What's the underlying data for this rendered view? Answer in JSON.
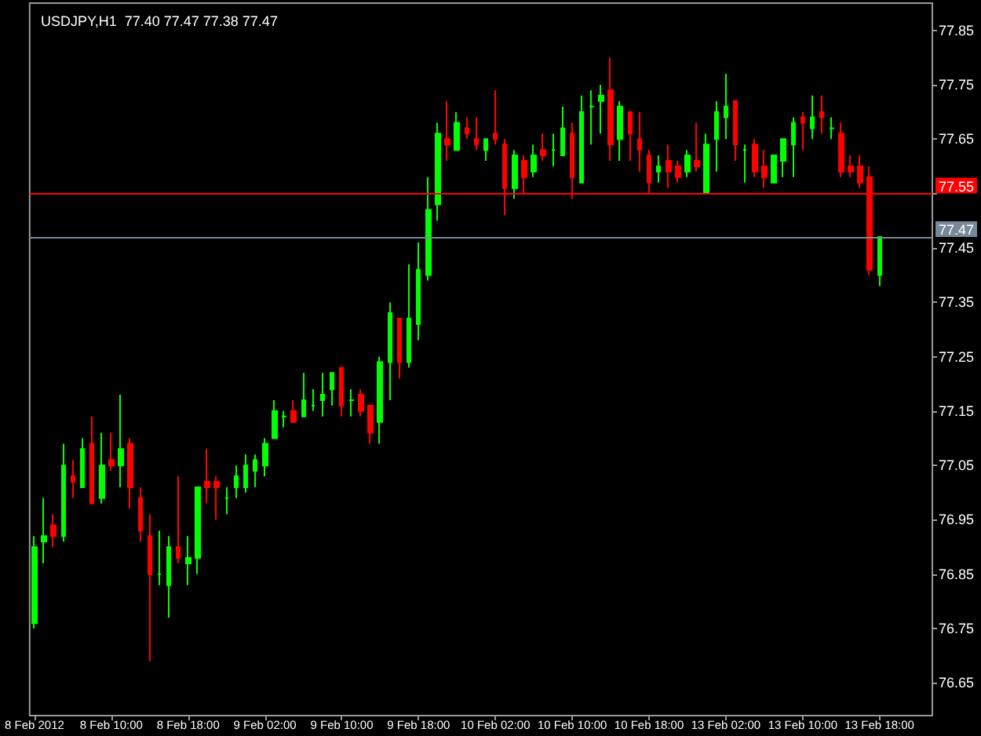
{
  "chart_data": {
    "type": "candlestick",
    "title": "USDJPY,H1  77.40 77.47 77.38 77.47",
    "categories": [
      "8 Feb 2012",
      null,
      null,
      null,
      null,
      null,
      null,
      null,
      "8 Feb 10:00",
      null,
      null,
      null,
      null,
      null,
      null,
      null,
      "8 Feb 18:00",
      null,
      null,
      null,
      null,
      null,
      null,
      null,
      "9 Feb 02:00",
      null,
      null,
      null,
      null,
      null,
      null,
      null,
      "9 Feb 10:00",
      null,
      null,
      null,
      null,
      null,
      null,
      null,
      "9 Feb 18:00",
      null,
      null,
      null,
      null,
      null,
      null,
      null,
      "10 Feb 02:00",
      null,
      null,
      null,
      null,
      null,
      null,
      null,
      "10 Feb 10:00",
      null,
      null,
      null,
      null,
      null,
      null,
      null,
      "10 Feb 18:00",
      null,
      null,
      null,
      null,
      null,
      null,
      null,
      "13 Feb 02:00",
      null,
      null,
      null,
      null,
      null,
      null,
      null,
      "13 Feb 10:00",
      null,
      null,
      null,
      null,
      null,
      null,
      null,
      "13 Feb 18:00"
    ],
    "ohlc": [
      [
        76.76,
        76.92,
        76.75,
        76.9
      ],
      [
        76.91,
        76.99,
        76.87,
        76.92
      ],
      [
        76.94,
        76.96,
        76.9,
        76.92
      ],
      [
        76.92,
        77.09,
        76.91,
        77.05
      ],
      [
        77.03,
        77.06,
        76.99,
        77.02
      ],
      [
        77.01,
        77.1,
        77.01,
        77.08
      ],
      [
        77.09,
        77.14,
        76.98,
        76.98
      ],
      [
        76.99,
        77.11,
        76.98,
        77.05
      ],
      [
        77.06,
        77.11,
        77.04,
        77.05
      ],
      [
        77.05,
        77.18,
        77.01,
        77.08
      ],
      [
        77.09,
        77.1,
        76.97,
        77.01
      ],
      [
        76.99,
        77.01,
        76.91,
        76.93
      ],
      [
        76.92,
        76.96,
        76.69,
        76.85
      ],
      [
        76.85,
        76.93,
        76.83,
        76.85
      ],
      [
        76.83,
        76.92,
        76.77,
        76.9
      ],
      [
        76.9,
        77.03,
        76.87,
        76.88
      ],
      [
        76.87,
        76.92,
        76.83,
        76.88
      ],
      [
        76.88,
        77.01,
        76.85,
        77.01
      ],
      [
        77.02,
        77.08,
        76.98,
        77.01
      ],
      [
        77.02,
        77.03,
        76.95,
        77.01
      ],
      [
        76.99,
        77.01,
        76.96,
        76.99
      ],
      [
        77.01,
        77.05,
        76.99,
        77.03
      ],
      [
        77.01,
        77.07,
        77.0,
        77.05
      ],
      [
        77.04,
        77.07,
        77.01,
        77.06
      ],
      [
        77.05,
        77.1,
        77.03,
        77.09
      ],
      [
        77.1,
        77.17,
        77.1,
        77.15
      ],
      [
        77.14,
        77.15,
        77.12,
        77.14
      ],
      [
        77.15,
        77.17,
        77.13,
        77.13
      ],
      [
        77.14,
        77.22,
        77.14,
        77.17
      ],
      [
        77.16,
        77.19,
        77.15,
        77.16
      ],
      [
        77.17,
        77.22,
        77.14,
        77.18
      ],
      [
        77.19,
        77.22,
        77.16,
        77.22
      ],
      [
        77.23,
        77.23,
        77.14,
        77.16
      ],
      [
        77.17,
        77.19,
        77.14,
        77.17
      ],
      [
        77.18,
        77.19,
        77.14,
        77.15
      ],
      [
        77.16,
        77.16,
        77.09,
        77.11
      ],
      [
        77.13,
        77.25,
        77.09,
        77.24
      ],
      [
        77.24,
        77.35,
        77.17,
        77.33
      ],
      [
        77.32,
        77.32,
        77.21,
        77.24
      ],
      [
        77.24,
        77.42,
        77.23,
        77.32
      ],
      [
        77.31,
        77.46,
        77.28,
        77.41
      ],
      [
        77.4,
        77.58,
        77.39,
        77.52
      ],
      [
        77.53,
        77.68,
        77.5,
        77.66
      ],
      [
        77.65,
        77.72,
        77.61,
        77.64
      ],
      [
        77.63,
        77.7,
        77.63,
        77.68
      ],
      [
        77.67,
        77.69,
        77.65,
        77.66
      ],
      [
        77.65,
        77.69,
        77.63,
        77.64
      ],
      [
        77.63,
        77.65,
        77.61,
        77.65
      ],
      [
        77.66,
        77.74,
        77.64,
        77.65
      ],
      [
        77.64,
        77.65,
        77.51,
        77.56
      ],
      [
        77.56,
        77.63,
        77.54,
        77.62
      ],
      [
        77.61,
        77.62,
        77.55,
        77.58
      ],
      [
        77.59,
        77.64,
        77.58,
        77.62
      ],
      [
        77.63,
        77.66,
        77.61,
        77.62
      ],
      [
        77.63,
        77.66,
        77.6,
        77.63
      ],
      [
        77.62,
        77.71,
        77.62,
        77.67
      ],
      [
        77.66,
        77.68,
        77.54,
        77.58
      ],
      [
        77.57,
        77.73,
        77.57,
        77.7
      ],
      [
        77.71,
        77.74,
        77.64,
        77.71
      ],
      [
        77.72,
        77.75,
        77.66,
        77.73
      ],
      [
        77.74,
        77.8,
        77.61,
        77.64
      ],
      [
        77.65,
        77.72,
        77.61,
        77.71
      ],
      [
        77.7,
        77.7,
        77.61,
        77.66
      ],
      [
        77.65,
        77.7,
        77.59,
        77.63
      ],
      [
        77.62,
        77.63,
        77.55,
        77.57
      ],
      [
        77.59,
        77.62,
        77.57,
        77.6
      ],
      [
        77.61,
        77.64,
        77.56,
        77.59
      ],
      [
        77.6,
        77.61,
        77.57,
        77.58
      ],
      [
        77.59,
        77.63,
        77.58,
        77.62
      ],
      [
        77.61,
        77.68,
        77.59,
        77.6
      ],
      [
        77.55,
        77.66,
        77.55,
        77.64
      ],
      [
        77.65,
        77.72,
        77.59,
        77.7
      ],
      [
        77.69,
        77.77,
        77.65,
        77.71
      ],
      [
        77.72,
        77.72,
        77.61,
        77.64
      ],
      [
        77.63,
        77.64,
        77.57,
        77.63
      ],
      [
        77.64,
        77.65,
        77.58,
        77.59
      ],
      [
        77.6,
        77.63,
        77.56,
        77.58
      ],
      [
        77.57,
        77.62,
        77.57,
        77.62
      ],
      [
        77.61,
        77.65,
        77.58,
        77.65
      ],
      [
        77.64,
        77.69,
        77.58,
        77.68
      ],
      [
        77.69,
        77.7,
        77.63,
        77.68
      ],
      [
        77.67,
        77.73,
        77.65,
        77.69
      ],
      [
        77.7,
        77.73,
        77.66,
        77.69
      ],
      [
        77.67,
        77.69,
        77.65,
        77.67
      ],
      [
        77.66,
        77.68,
        77.58,
        77.59
      ],
      [
        77.6,
        77.62,
        77.58,
        77.59
      ],
      [
        77.6,
        77.62,
        77.56,
        77.57
      ],
      [
        77.58,
        77.6,
        77.4,
        77.41
      ],
      [
        77.4,
        77.47,
        77.38,
        77.47
      ]
    ],
    "colors": [
      "#00ff00",
      "#00ff00",
      "#ff0000",
      "#00ff00",
      "#ff0000",
      "#00ff00",
      "#ff0000",
      "#00ff00",
      "#ff0000",
      "#00ff00",
      "#ff0000",
      "#ff0000",
      "#ff0000",
      "#00ff00",
      "#00ff00",
      "#ff0000",
      "#00ff00",
      "#00ff00",
      "#ff0000",
      "#ff0000",
      "#00ff00",
      "#00ff00",
      "#00ff00",
      "#00ff00",
      "#00ff00",
      "#00ff00",
      "#00ff00",
      "#ff0000",
      "#00ff00",
      "#00ff00",
      "#00ff00",
      "#00ff00",
      "#ff0000",
      "#00ff00",
      "#ff0000",
      "#ff0000",
      "#00ff00",
      "#00ff00",
      "#ff0000",
      "#00ff00",
      "#00ff00",
      "#00ff00",
      "#00ff00",
      "#ff0000",
      "#00ff00",
      "#ff0000",
      "#ff0000",
      "#00ff00",
      "#ff0000",
      "#ff0000",
      "#00ff00",
      "#ff0000",
      "#00ff00",
      "#ff0000",
      "#00ff00",
      "#00ff00",
      "#ff0000",
      "#00ff00",
      "#00ff00",
      "#00ff00",
      "#ff0000",
      "#00ff00",
      "#ff0000",
      "#ff0000",
      "#ff0000",
      "#00ff00",
      "#ff0000",
      "#ff0000",
      "#00ff00",
      "#ff0000",
      "#00ff00",
      "#00ff00",
      "#00ff00",
      "#ff0000",
      "#00ff00",
      "#ff0000",
      "#ff0000",
      "#00ff00",
      "#00ff00",
      "#00ff00",
      "#ff0000",
      "#00ff00",
      "#ff0000",
      "#00ff00",
      "#ff0000",
      "#ff0000",
      "#ff0000",
      "#ff0000",
      "#00ff00"
    ],
    "ylim": [
      76.59,
      77.9
    ],
    "yticks": [
      76.65,
      76.75,
      76.85,
      76.95,
      77.05,
      77.15,
      77.25,
      77.35,
      77.45,
      {
        "value": 77.55,
        "label": null
      },
      77.65,
      77.75,
      77.85
    ],
    "ref_lines": [
      {
        "axis": "y",
        "value": 77.55,
        "label": "77.55",
        "color": "#ff0000"
      },
      {
        "axis": "y",
        "value": 77.47,
        "label": "77.47",
        "color": "#778899"
      }
    ]
  }
}
